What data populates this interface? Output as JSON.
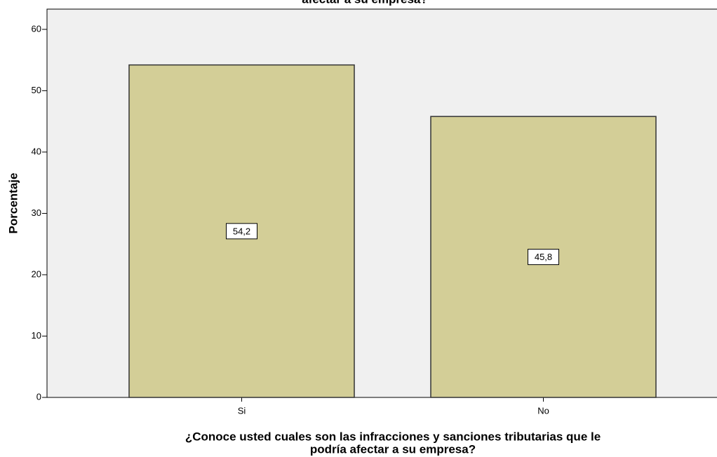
{
  "chart_data": {
    "type": "bar",
    "title": "afectar a su empresa?",
    "xlabel": [
      "¿Conoce usted cuales son las infracciones y sanciones tributarias que le",
      "podría afectar a su empresa?"
    ],
    "ylabel": "Porcentaje",
    "categories": [
      "Si",
      "No"
    ],
    "values": [
      54.2,
      45.8
    ],
    "value_labels": [
      "54,2",
      "45,8"
    ],
    "color": "#d3ce97",
    "ylim": [
      0,
      63.3
    ],
    "yticks": [
      0,
      10,
      20,
      30,
      40,
      50,
      60
    ],
    "grid": false
  }
}
